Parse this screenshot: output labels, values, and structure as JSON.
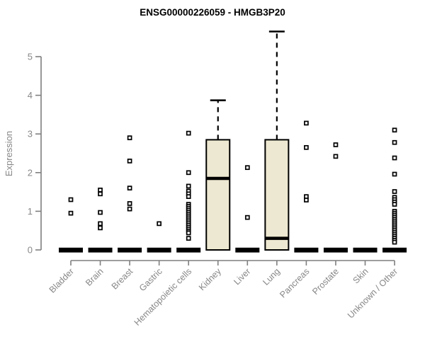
{
  "chart_data": {
    "type": "boxplot",
    "title": "ENSG00000226059 - HMGB3P20",
    "xlabel": "",
    "ylabel": "Expression",
    "ylim": [
      0,
      5
    ],
    "yticks": [
      0,
      1,
      2,
      3,
      4,
      5
    ],
    "grid": false,
    "legend": "none",
    "colors": {
      "box_fill": "#ede8d1",
      "box_border": "#000000",
      "median": "#000000",
      "whisker": "#000000",
      "outlier_fill": "#ffffff",
      "outlier_border": "#000000",
      "axis": "#7f7f7f",
      "tick_label": "#878787",
      "title": "#000000",
      "background": "#ffffff"
    },
    "categories": [
      "Bladder",
      "Brain",
      "Breast",
      "Gastric",
      "Hematopoietic cells",
      "Kidney",
      "Liver",
      "Lung",
      "Pancreas",
      "Prostate",
      "Skin",
      "Unknown / Other"
    ],
    "boxes": [
      {
        "category": "Bladder",
        "q1": 0,
        "median": 0,
        "q3": 0,
        "whisker_low": 0,
        "whisker_high": 0,
        "outliers": [
          1.3,
          0.95
        ]
      },
      {
        "category": "Brain",
        "q1": 0,
        "median": 0,
        "q3": 0,
        "whisker_low": 0,
        "whisker_high": 0,
        "outliers": [
          1.55,
          1.45,
          0.97,
          0.68,
          0.57
        ]
      },
      {
        "category": "Breast",
        "q1": 0,
        "median": 0,
        "q3": 0,
        "whisker_low": 0,
        "whisker_high": 0,
        "outliers": [
          2.9,
          2.3,
          1.6,
          1.2,
          1.06
        ]
      },
      {
        "category": "Gastric",
        "q1": 0,
        "median": 0,
        "q3": 0,
        "whisker_low": 0,
        "whisker_high": 0,
        "outliers": [
          0.68
        ]
      },
      {
        "category": "Hematopoietic cells",
        "q1": 0,
        "median": 0,
        "q3": 0,
        "whisker_low": 0,
        "whisker_high": 0,
        "outliers": [
          3.02,
          2.0,
          1.65,
          1.52,
          1.45,
          1.38,
          1.18,
          1.13,
          1.08,
          1.03,
          0.98,
          0.93,
          0.88,
          0.83,
          0.78,
          0.73,
          0.68,
          0.63,
          0.58,
          0.53,
          0.48,
          0.44,
          0.3
        ]
      },
      {
        "category": "Kidney",
        "q1": 0,
        "median": 1.85,
        "q3": 2.85,
        "whisker_low": 0,
        "whisker_high": 3.87,
        "outliers": []
      },
      {
        "category": "Liver",
        "q1": 0,
        "median": 0,
        "q3": 0,
        "whisker_low": 0,
        "whisker_high": 0,
        "outliers": [
          2.13,
          0.84
        ]
      },
      {
        "category": "Lung",
        "q1": 0,
        "median": 0.3,
        "q3": 2.85,
        "whisker_low": 0,
        "whisker_high": 5.65,
        "outliers": []
      },
      {
        "category": "Pancreas",
        "q1": 0,
        "median": 0,
        "q3": 0,
        "whisker_low": 0,
        "whisker_high": 0,
        "outliers": [
          3.28,
          2.65,
          1.38,
          1.29
        ]
      },
      {
        "category": "Prostate",
        "q1": 0,
        "median": 0,
        "q3": 0,
        "whisker_low": 0,
        "whisker_high": 0,
        "outliers": [
          2.72,
          2.42
        ]
      },
      {
        "category": "Skin",
        "q1": 0,
        "median": 0,
        "q3": 0,
        "whisker_low": 0,
        "whisker_high": 0,
        "outliers": []
      },
      {
        "category": "Unknown / Other",
        "q1": 0,
        "median": 0,
        "q3": 0,
        "whisker_low": 0,
        "whisker_high": 0,
        "outliers": [
          3.1,
          2.78,
          2.38,
          1.96,
          1.51,
          1.36,
          1.3,
          1.24,
          1.18,
          1.0,
          0.95,
          0.9,
          0.85,
          0.8,
          0.75,
          0.7,
          0.65,
          0.6,
          0.55,
          0.5,
          0.45,
          0.4,
          0.35,
          0.3,
          0.25,
          0.2
        ]
      }
    ]
  }
}
